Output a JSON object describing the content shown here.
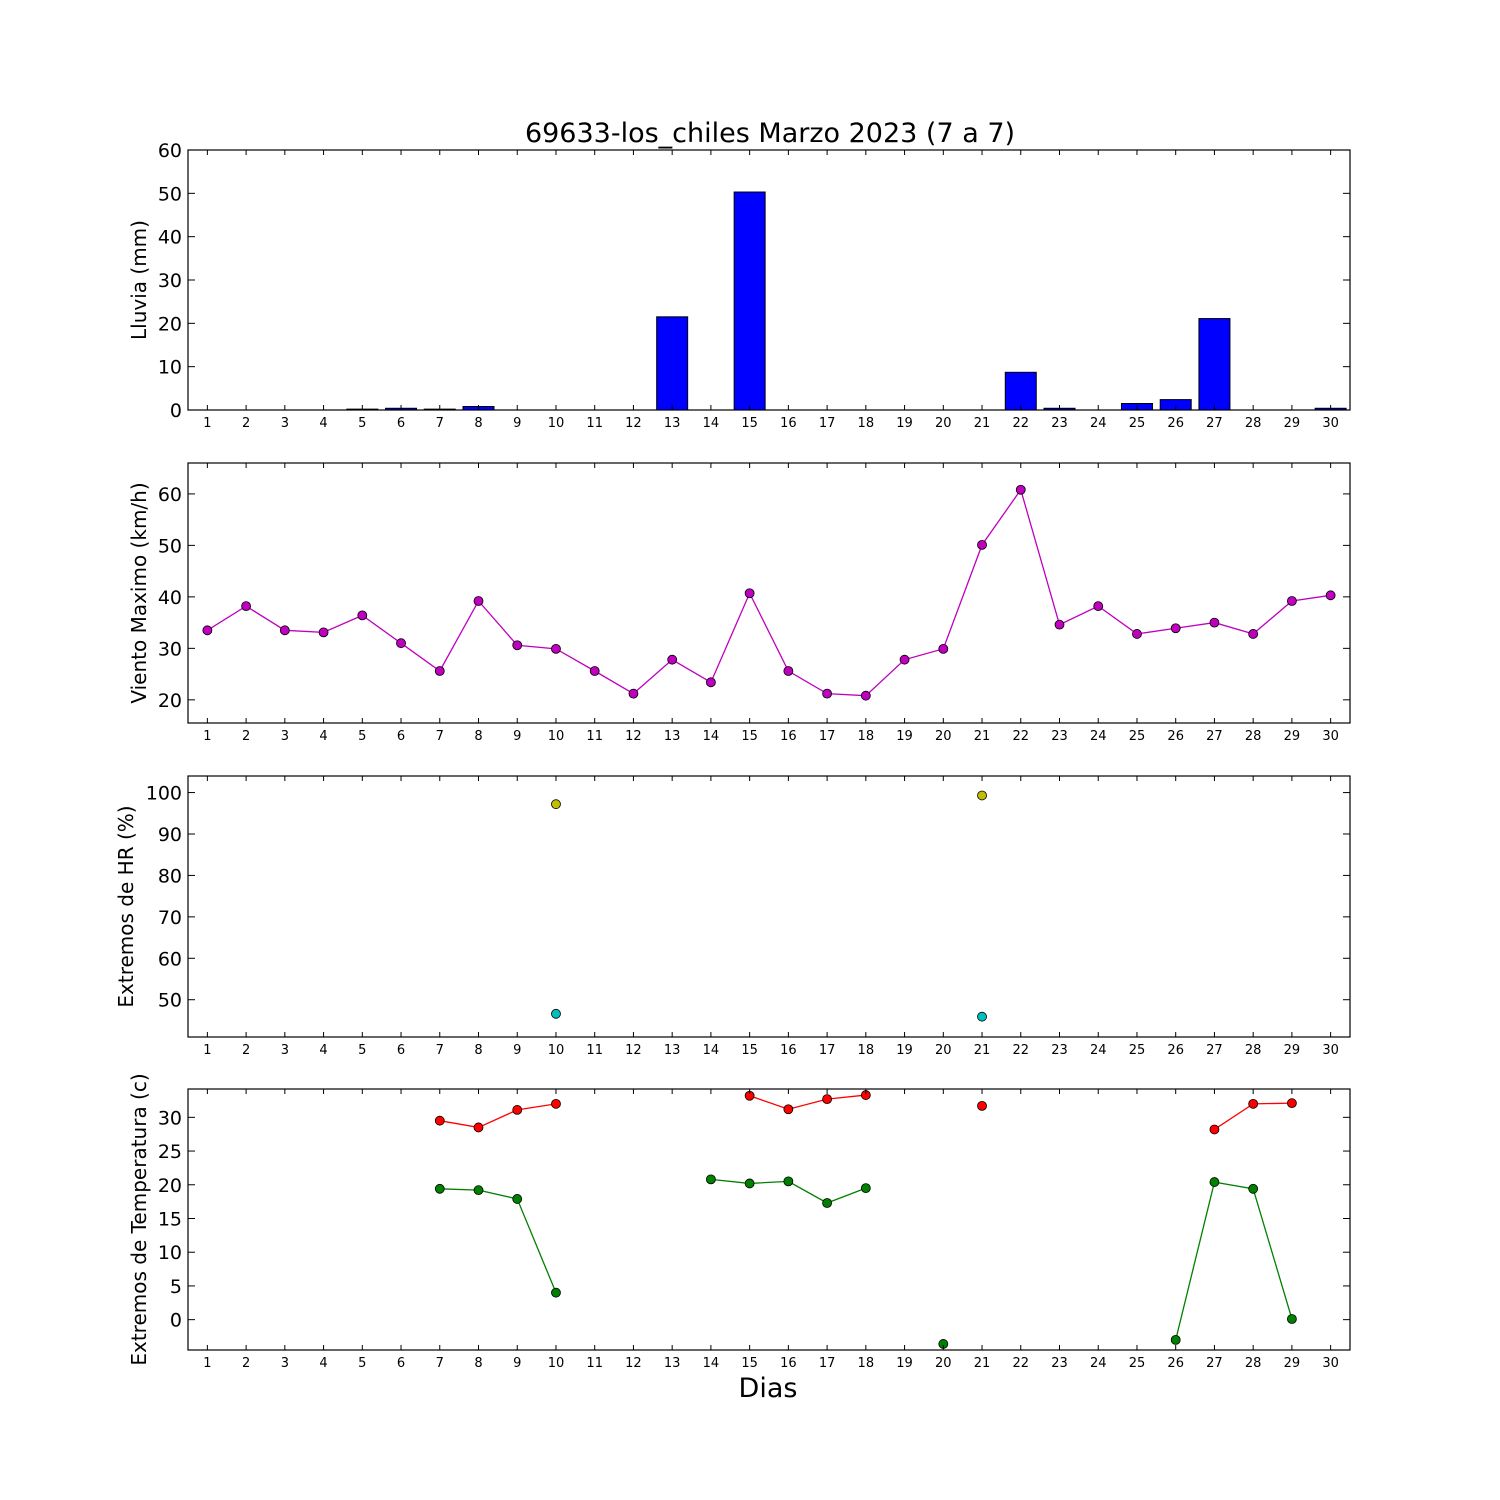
{
  "title": "69633-los_chiles Marzo 2023  (7 a 7)",
  "xlabel": "Dias",
  "days": [
    1,
    2,
    3,
    4,
    5,
    6,
    7,
    8,
    9,
    10,
    11,
    12,
    13,
    14,
    15,
    16,
    17,
    18,
    19,
    20,
    21,
    22,
    23,
    24,
    25,
    26,
    27,
    28,
    29,
    30
  ],
  "chart_data": [
    {
      "type": "bar",
      "ylabel": "Lluvia (mm)",
      "ylim": [
        0,
        60
      ],
      "yticks": [
        0,
        10,
        20,
        30,
        40,
        50,
        60
      ],
      "color": "#0000ff",
      "categories": [
        1,
        2,
        3,
        4,
        5,
        6,
        7,
        8,
        9,
        10,
        11,
        12,
        13,
        14,
        15,
        16,
        17,
        18,
        19,
        20,
        21,
        22,
        23,
        24,
        25,
        26,
        27,
        28,
        29,
        30
      ],
      "values": [
        0,
        0,
        0,
        0,
        0.2,
        0.4,
        0.2,
        0.8,
        0,
        0,
        0,
        0,
        21.5,
        0,
        50.3,
        0,
        0,
        0,
        0,
        0,
        0,
        8.7,
        0.4,
        0,
        1.5,
        2.4,
        21.1,
        0,
        0,
        0.4
      ]
    },
    {
      "type": "line",
      "ylabel": "Viento Maximo (km/h)",
      "ylim": [
        15.5,
        66
      ],
      "yticks": [
        20,
        30,
        40,
        50,
        60
      ],
      "series": [
        {
          "color": "#bf00bf",
          "x": [
            1,
            2,
            3,
            4,
            5,
            6,
            7,
            8,
            9,
            10,
            11,
            12,
            13,
            14,
            15,
            16,
            17,
            18,
            19,
            20,
            21,
            22,
            23,
            24,
            25,
            26,
            27,
            28,
            29,
            30
          ],
          "y": [
            33.5,
            38.2,
            33.5,
            33.1,
            36.4,
            31,
            25.6,
            39.2,
            30.6,
            29.9,
            25.6,
            21.2,
            27.8,
            23.4,
            40.7,
            25.6,
            21.2,
            20.8,
            27.8,
            29.9,
            50.1,
            60.8,
            34.6,
            38.2,
            32.8,
            33.9,
            35,
            32.8,
            39.2,
            40.3
          ]
        }
      ]
    },
    {
      "type": "scatter",
      "ylabel": "Extremos de HR (%)",
      "ylim": [
        41,
        104
      ],
      "yticks": [
        50,
        60,
        70,
        80,
        90,
        100
      ],
      "series": [
        {
          "color": "#bfbf00",
          "x": [
            10,
            21
          ],
          "y": [
            97.2,
            99.3
          ]
        },
        {
          "color": "#00bfbf",
          "x": [
            10,
            21
          ],
          "y": [
            46.6,
            45.9
          ]
        }
      ]
    },
    {
      "type": "line",
      "ylabel": "Extremos de Temperatura (c)",
      "ylim": [
        -4.5,
        34.2
      ],
      "yticks": [
        0,
        5,
        10,
        15,
        20,
        25,
        30
      ],
      "series": [
        {
          "color": "#ff0000",
          "x": [
            7,
            8,
            9,
            10,
            11,
            12,
            13,
            14,
            15,
            16,
            17,
            18,
            19,
            20,
            21,
            22,
            23,
            24,
            25,
            26,
            27,
            28,
            29
          ],
          "y": [
            29.5,
            28.5,
            31.1,
            32.0,
            null,
            null,
            null,
            null,
            33.2,
            31.2,
            32.7,
            33.3,
            null,
            null,
            31.7,
            null,
            null,
            null,
            null,
            null,
            28.2,
            32.0,
            32.1
          ]
        },
        {
          "color": "#008000",
          "x": [
            7,
            8,
            9,
            10,
            11,
            12,
            13,
            14,
            15,
            16,
            17,
            18,
            19,
            20,
            21,
            22,
            23,
            24,
            25,
            26,
            27,
            28,
            29
          ],
          "y": [
            19.4,
            19.2,
            17.9,
            4.0,
            null,
            null,
            null,
            20.8,
            20.2,
            20.5,
            17.3,
            19.5,
            null,
            -3.6,
            null,
            null,
            null,
            null,
            null,
            -3.0,
            20.4,
            19.4,
            0.1
          ]
        }
      ]
    }
  ]
}
